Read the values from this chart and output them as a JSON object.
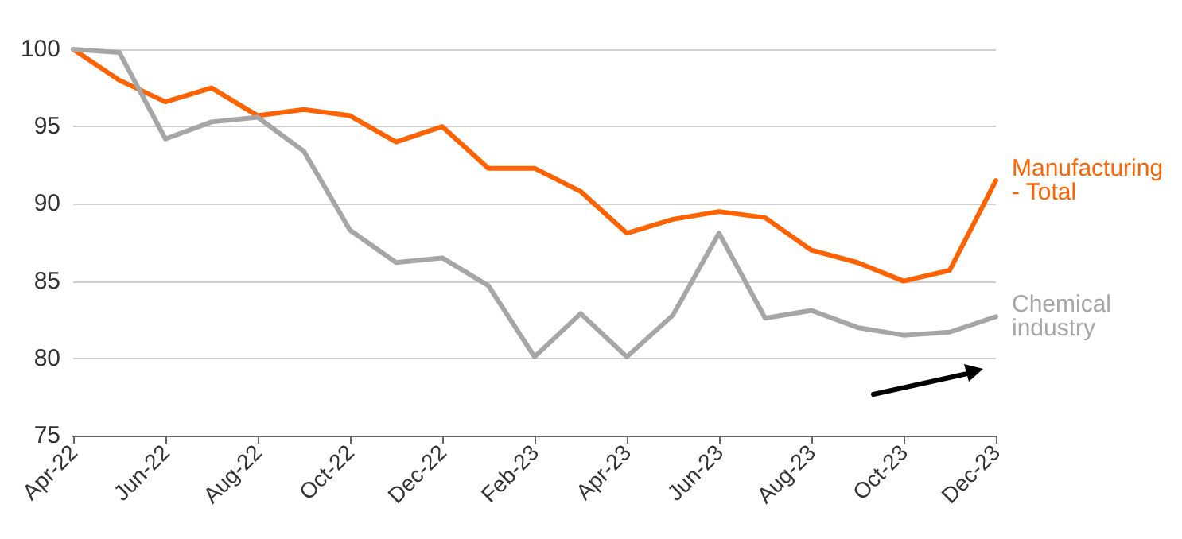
{
  "chart_data": {
    "type": "line",
    "categories": [
      "Apr-22",
      null,
      "Jun-22",
      null,
      "Aug-22",
      null,
      "Oct-22",
      null,
      "Dec-22",
      null,
      "Feb-23",
      null,
      "Apr-23",
      null,
      "Jun-23",
      null,
      "Aug-23",
      null,
      "Oct-23",
      null,
      "Dec-23"
    ],
    "series": [
      {
        "name": "Manufacturing - Total",
        "color": "#ff6200",
        "values": [
          100,
          98,
          96.6,
          97.5,
          95.7,
          96.1,
          95.7,
          94,
          95,
          92.3,
          92.3,
          90.8,
          88.1,
          89,
          89.5,
          89.1,
          87,
          86.2,
          85,
          85.7,
          91.5
        ]
      },
      {
        "name": "Chemical industry",
        "color": "#a6a6a6",
        "values": [
          100,
          99.8,
          94.2,
          95.3,
          95.6,
          93.4,
          88.3,
          86.2,
          86.5,
          84.7,
          80.1,
          82.9,
          80.1,
          82.8,
          88.1,
          82.6,
          83.1,
          82,
          81.5,
          81.7,
          82.7
        ]
      }
    ],
    "ylim": [
      75,
      100
    ],
    "yticks": [
      75,
      80,
      85,
      90,
      95,
      100
    ],
    "grid": "y",
    "legend": false,
    "marker": "none",
    "line_style": "solid"
  }
}
